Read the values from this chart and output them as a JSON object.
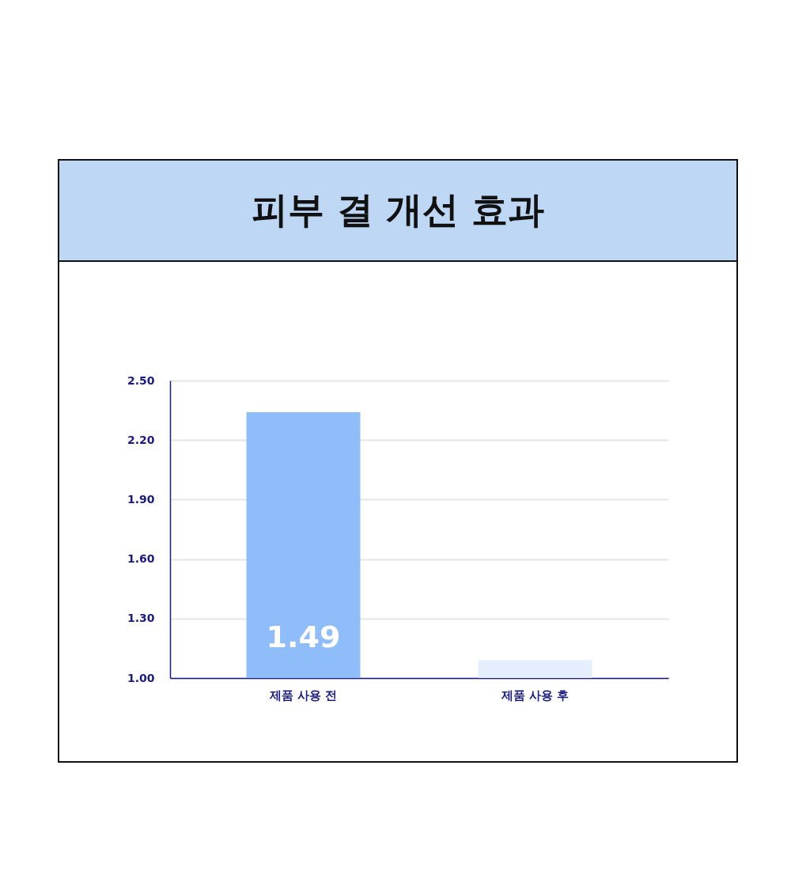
{
  "chart_data": {
    "type": "bar",
    "title": "피부 결 개선 효과",
    "categories": [
      "제품 사용 전",
      "제품 사용 후"
    ],
    "values": [
      2.34,
      1.09
    ],
    "colors": [
      "#8fbdfa",
      "#e4eefc"
    ],
    "ylim": [
      1.0,
      2.5
    ],
    "yticks": [
      {
        "value": 1.0,
        "label": "1.00"
      },
      {
        "value": 1.3,
        "label": "1.30"
      },
      {
        "value": 1.6,
        "label": "1.60"
      },
      {
        "value": 1.9,
        "label": "1.90"
      },
      {
        "value": 2.2,
        "label": "2.20"
      },
      {
        "value": 2.5,
        "label": "2.50"
      }
    ],
    "grid": "y",
    "annotations": [
      "1.49"
    ]
  }
}
